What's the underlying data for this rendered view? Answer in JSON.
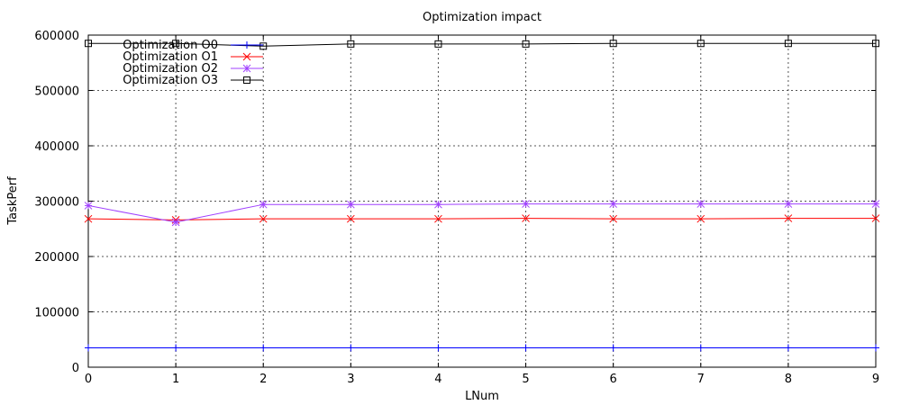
{
  "chart_data": {
    "type": "line",
    "title": "Optimization impact",
    "xlabel": "LNum",
    "ylabel": "TaskPerf",
    "x": [
      0,
      1,
      2,
      3,
      4,
      5,
      6,
      7,
      8,
      9
    ],
    "xlim": [
      0,
      9
    ],
    "ylim": [
      0,
      600000
    ],
    "xticks": [
      "0",
      "1",
      "2",
      "3",
      "4",
      "5",
      "6",
      "7",
      "8",
      "9"
    ],
    "yticks": [
      "0",
      "100000",
      "200000",
      "300000",
      "400000",
      "500000",
      "600000"
    ],
    "ytick_values": [
      0,
      100000,
      200000,
      300000,
      400000,
      500000,
      600000
    ],
    "grid": true,
    "legend_position": "top-left",
    "series": [
      {
        "name": "Optimization O0",
        "color": "#0000ff",
        "marker": "plus",
        "values": [
          35000,
          35000,
          35000,
          35000,
          35000,
          35000,
          35000,
          35000,
          35000,
          35000
        ]
      },
      {
        "name": "Optimization O1",
        "color": "#ff0000",
        "marker": "x",
        "values": [
          268000,
          266000,
          268000,
          268000,
          268000,
          269000,
          268000,
          268000,
          269000,
          269000
        ]
      },
      {
        "name": "Optimization O2",
        "color": "#a040ff",
        "marker": "star",
        "values": [
          292000,
          262000,
          294000,
          294000,
          294000,
          295000,
          295000,
          295000,
          295000,
          295000
        ]
      },
      {
        "name": "Optimization O3",
        "color": "#000000",
        "marker": "square",
        "values": [
          585000,
          585000,
          580000,
          584000,
          584000,
          584000,
          585000,
          585000,
          585000,
          585000
        ]
      }
    ]
  }
}
